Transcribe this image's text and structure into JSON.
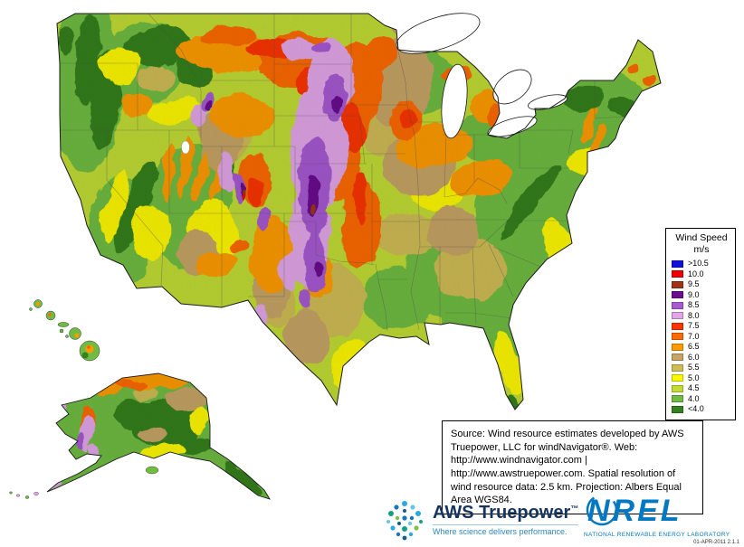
{
  "legend": {
    "title": "Wind Speed",
    "unit": "m/s",
    "entries": [
      {
        "label": ">10.5",
        "color": "#1010d8"
      },
      {
        "label": "10.0",
        "color": "#ee0000"
      },
      {
        "label": "9.5",
        "color": "#a03418"
      },
      {
        "label": "9.0",
        "color": "#6a0d8e"
      },
      {
        "label": "8.5",
        "color": "#a75ad2"
      },
      {
        "label": "8.0",
        "color": "#e2a6e8"
      },
      {
        "label": "7.5",
        "color": "#fb3500"
      },
      {
        "label": "7.0",
        "color": "#fd6a02"
      },
      {
        "label": "6.5",
        "color": "#fe9b00"
      },
      {
        "label": "6.0",
        "color": "#c6a465"
      },
      {
        "label": "5.5",
        "color": "#cfbc54"
      },
      {
        "label": "5.0",
        "color": "#fdf800"
      },
      {
        "label": "4.5",
        "color": "#c2dc35"
      },
      {
        "label": "4.0",
        "color": "#70bc42"
      },
      {
        "label": "<4.0",
        "color": "#35801f"
      }
    ]
  },
  "source_box": {
    "text": "Source: Wind resource estimates developed by AWS Truepower, LLC for windNavigator®. Web: http://www.windnavigator.com | http://www.awstruepower.com. Spatial resolution of wind resource data: 2.5 km. Projection: Albers Equal Area WGS84."
  },
  "logos": {
    "aws": {
      "name": "AWS Truepower",
      "tm": "™",
      "tagline": "Where science delivers performance."
    },
    "nrel": {
      "name": "NREL",
      "subtitle": "NATIONAL RENEWABLE ENERGY LABORATORY",
      "version": "01-APR-2011 2.1.1"
    }
  }
}
